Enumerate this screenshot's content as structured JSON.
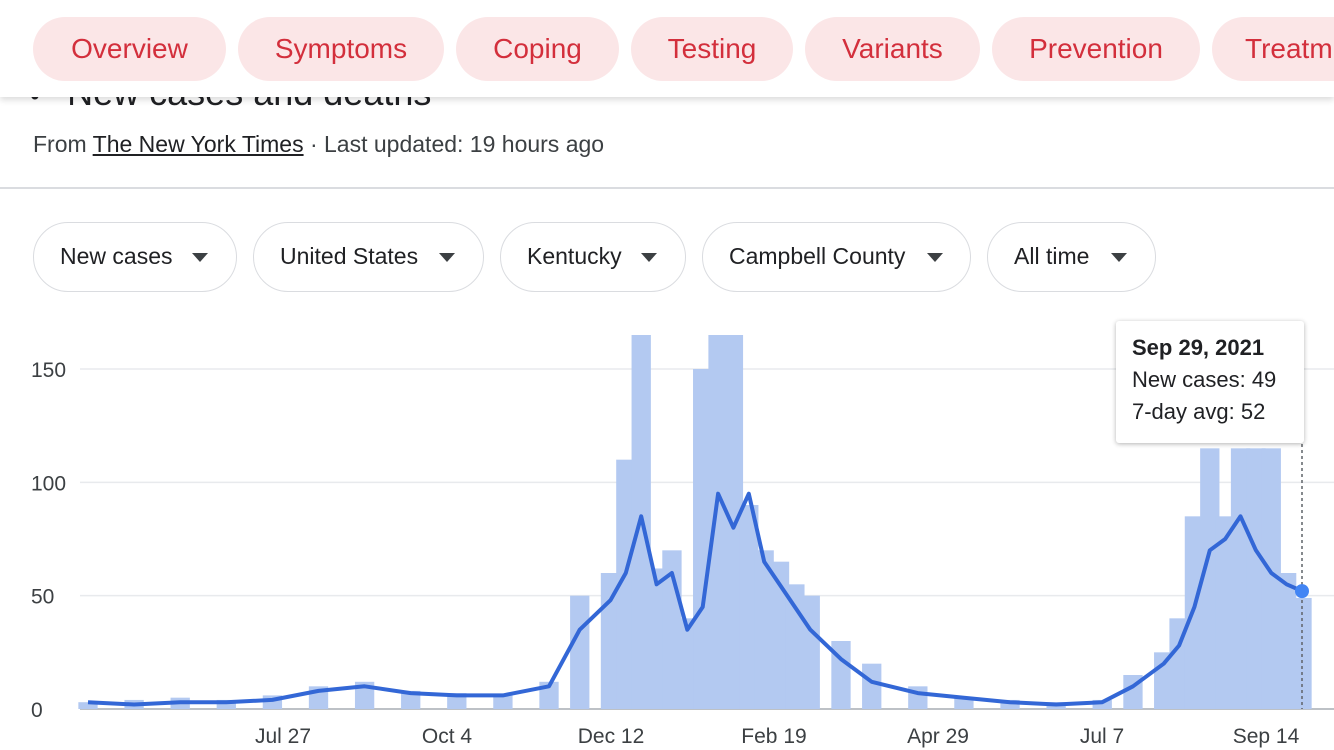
{
  "tabs": [
    "Overview",
    "Symptoms",
    "Coping",
    "Testing",
    "Variants",
    "Prevention",
    "Treatm"
  ],
  "title": "New cases and deaths",
  "source": {
    "prefix": "From",
    "name": "The New York Times",
    "updated": "· Last updated: 19 hours ago"
  },
  "filters": [
    "New cases",
    "United States",
    "Kentucky",
    "Campbell County",
    "All time"
  ],
  "tooltip": {
    "date": "Sep 29, 2021",
    "new_cases": "New cases: 49",
    "avg": "7-day avg: 52"
  },
  "colors": {
    "accent": "#d32f3c",
    "tab_bg": "#fbe6e7",
    "bar": "#b3c9f1",
    "line": "#3367d6"
  },
  "chart_data": {
    "type": "bar",
    "ylim": [
      0,
      170
    ],
    "y_ticks": [
      0,
      50,
      100,
      150
    ],
    "x_tick_labels": [
      "Jul 27",
      "Oct 4",
      "Dec 12",
      "Feb 19",
      "Apr 29",
      "Jul 7",
      "Sep 14"
    ],
    "x_range": [
      "2020-03-25",
      "2021-09-29"
    ],
    "series": [
      {
        "name": "New cases",
        "kind": "bars",
        "x": [
          "2020-03-25",
          "2020-04-15",
          "2020-05-06",
          "2020-05-27",
          "2020-06-17",
          "2020-07-08",
          "2020-07-29",
          "2020-08-19",
          "2020-09-09",
          "2020-09-30",
          "2020-10-21",
          "2020-11-04",
          "2020-11-18",
          "2020-11-25",
          "2020-12-02",
          "2020-12-09",
          "2020-12-16",
          "2020-12-23",
          "2020-12-30",
          "2021-01-06",
          "2021-01-13",
          "2021-01-20",
          "2021-01-27",
          "2021-02-03",
          "2021-02-10",
          "2021-02-17",
          "2021-03-03",
          "2021-03-17",
          "2021-04-07",
          "2021-04-28",
          "2021-05-19",
          "2021-06-09",
          "2021-06-30",
          "2021-07-14",
          "2021-07-28",
          "2021-08-04",
          "2021-08-11",
          "2021-08-18",
          "2021-08-25",
          "2021-09-01",
          "2021-09-08",
          "2021-09-15",
          "2021-09-22",
          "2021-09-29"
        ],
        "values": [
          3,
          4,
          5,
          4,
          6,
          10,
          12,
          8,
          7,
          6,
          12,
          50,
          60,
          110,
          165,
          62,
          70,
          40,
          150,
          165,
          165,
          90,
          70,
          65,
          55,
          50,
          30,
          20,
          10,
          5,
          4,
          3,
          4,
          15,
          25,
          40,
          85,
          115,
          85,
          115,
          115,
          115,
          60,
          49
        ]
      },
      {
        "name": "7-day avg",
        "kind": "line",
        "x": [
          "2020-03-25",
          "2020-04-15",
          "2020-05-06",
          "2020-05-27",
          "2020-06-17",
          "2020-07-08",
          "2020-07-29",
          "2020-08-19",
          "2020-09-09",
          "2020-09-30",
          "2020-10-21",
          "2020-11-04",
          "2020-11-18",
          "2020-11-25",
          "2020-12-02",
          "2020-12-09",
          "2020-12-16",
          "2020-12-23",
          "2020-12-30",
          "2021-01-06",
          "2021-01-13",
          "2021-01-20",
          "2021-01-27",
          "2021-02-03",
          "2021-02-10",
          "2021-02-17",
          "2021-03-03",
          "2021-03-17",
          "2021-04-07",
          "2021-04-28",
          "2021-05-19",
          "2021-06-09",
          "2021-06-30",
          "2021-07-14",
          "2021-07-28",
          "2021-08-04",
          "2021-08-11",
          "2021-08-18",
          "2021-08-25",
          "2021-09-01",
          "2021-09-08",
          "2021-09-15",
          "2021-09-22",
          "2021-09-29"
        ],
        "values": [
          3,
          2,
          3,
          3,
          4,
          8,
          10,
          7,
          6,
          6,
          10,
          35,
          48,
          60,
          85,
          55,
          60,
          35,
          45,
          95,
          80,
          95,
          65,
          55,
          45,
          35,
          22,
          12,
          7,
          5,
          3,
          2,
          3,
          10,
          20,
          28,
          45,
          70,
          75,
          85,
          70,
          60,
          55,
          52
        ]
      }
    ]
  }
}
